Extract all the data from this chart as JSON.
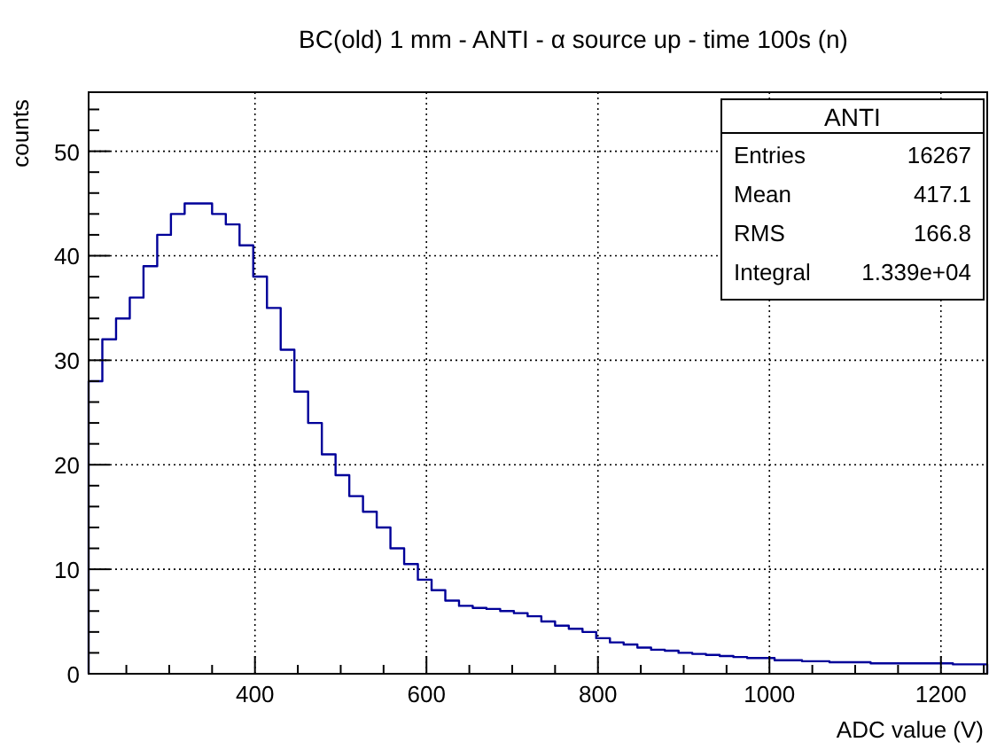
{
  "chart_data": {
    "type": "histogram",
    "title": "BC(old) 1 mm - ANTI - α source up - time 100s (n)",
    "xlabel": "ADC value (V)",
    "ylabel": "counts",
    "bins": [
      206,
      222,
      238,
      254,
      270,
      286,
      302,
      318,
      334,
      350,
      366,
      382,
      398,
      414,
      430,
      446,
      462,
      478,
      494,
      510,
      526,
      542,
      558,
      574,
      590,
      606,
      622,
      638,
      654,
      670,
      686,
      702,
      718,
      734,
      750,
      766,
      782,
      798,
      814,
      830,
      846,
      862,
      878,
      894,
      910,
      926,
      942,
      958,
      974,
      990,
      1006,
      1022,
      1038,
      1054,
      1070,
      1086,
      1102,
      1118,
      1134,
      1150,
      1166,
      1182,
      1198,
      1214,
      1230,
      1246,
      1254
    ],
    "values": [
      28,
      32,
      34,
      36,
      39,
      42,
      44,
      45,
      45,
      44,
      43,
      41,
      38,
      35,
      31,
      27,
      24,
      21,
      19,
      17,
      15.5,
      14,
      12,
      10.5,
      9,
      8,
      7,
      6.5,
      6.3,
      6.2,
      6,
      5.8,
      5.5,
      5,
      4.6,
      4.3,
      4,
      3.4,
      3,
      2.8,
      2.5,
      2.3,
      2.2,
      2,
      1.9,
      1.8,
      1.7,
      1.6,
      1.5,
      1.5,
      1.3,
      1.3,
      1.2,
      1.2,
      1.1,
      1.1,
      1.1,
      1,
      1,
      1,
      1,
      1,
      1,
      0.9,
      0.9,
      0.9
    ],
    "color": "#000099",
    "xlim": [
      206,
      1254
    ],
    "xticks": [
      {
        "value": 250,
        "label": null
      },
      {
        "value": 300,
        "label": null
      },
      {
        "value": 350,
        "label": null
      },
      400,
      {
        "value": 450,
        "label": null
      },
      {
        "value": 500,
        "label": null
      },
      {
        "value": 550,
        "label": null
      },
      600,
      {
        "value": 650,
        "label": null
      },
      {
        "value": 700,
        "label": null
      },
      {
        "value": 750,
        "label": null
      },
      800,
      {
        "value": 850,
        "label": null
      },
      {
        "value": 900,
        "label": null
      },
      {
        "value": 950,
        "label": null
      },
      1000,
      {
        "value": 1050,
        "label": null
      },
      {
        "value": 1100,
        "label": null
      },
      {
        "value": 1150,
        "label": null
      },
      1200,
      {
        "value": 1250,
        "label": null
      }
    ],
    "ylim": [
      0,
      55.65
    ],
    "yticks": [
      0,
      {
        "value": 2,
        "label": null
      },
      {
        "value": 4,
        "label": null
      },
      {
        "value": 6,
        "label": null
      },
      {
        "value": 8,
        "label": null
      },
      10,
      {
        "value": 12,
        "label": null
      },
      {
        "value": 14,
        "label": null
      },
      {
        "value": 16,
        "label": null
      },
      {
        "value": 18,
        "label": null
      },
      20,
      {
        "value": 22,
        "label": null
      },
      {
        "value": 24,
        "label": null
      },
      {
        "value": 26,
        "label": null
      },
      {
        "value": 28,
        "label": null
      },
      30,
      {
        "value": 32,
        "label": null
      },
      {
        "value": 34,
        "label": null
      },
      {
        "value": 36,
        "label": null
      },
      {
        "value": 38,
        "label": null
      },
      40,
      {
        "value": 42,
        "label": null
      },
      {
        "value": 44,
        "label": null
      },
      {
        "value": 46,
        "label": null
      },
      {
        "value": 48,
        "label": null
      },
      50,
      {
        "value": 52,
        "label": null
      },
      {
        "value": 54,
        "label": null
      }
    ],
    "grid": true,
    "annotations": [
      "ANTI",
      "Entries",
      "16267",
      "Mean",
      "417.1",
      "RMS",
      "166.8",
      "Integral",
      "1.339e+04"
    ]
  }
}
